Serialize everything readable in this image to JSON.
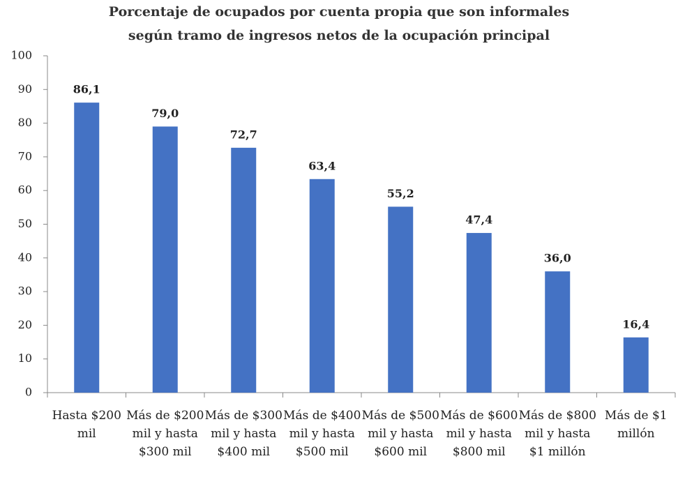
{
  "chart_data": {
    "type": "bar",
    "title": "Porcentaje de ocupados por cuenta propia que son informales",
    "subtitle": "según tramo de ingresos netos de la ocupación principal",
    "categories": [
      "Hasta $200 mil",
      "Más de $200 mil y hasta $300 mil",
      "Más de $300 mil y hasta $400 mil",
      "Más de $400 mil y hasta $500 mil",
      "Más de $500 mil y hasta $600 mil",
      "Más de $600 mil y hasta $800 mil",
      "Más de $800 mil y hasta $1 millón",
      "Más de $1 millón"
    ],
    "values": [
      86.1,
      79.0,
      72.7,
      63.4,
      55.2,
      47.4,
      36.0,
      16.4
    ],
    "value_labels": [
      "86,1",
      "79,0",
      "72,7",
      "63,4",
      "55,2",
      "47,4",
      "36,0",
      "16,4"
    ],
    "color": "#4472c4",
    "ylim": [
      0,
      100
    ],
    "yticks": [
      0,
      10,
      20,
      30,
      40,
      50,
      60,
      70,
      80,
      90,
      100
    ],
    "grid": false
  }
}
